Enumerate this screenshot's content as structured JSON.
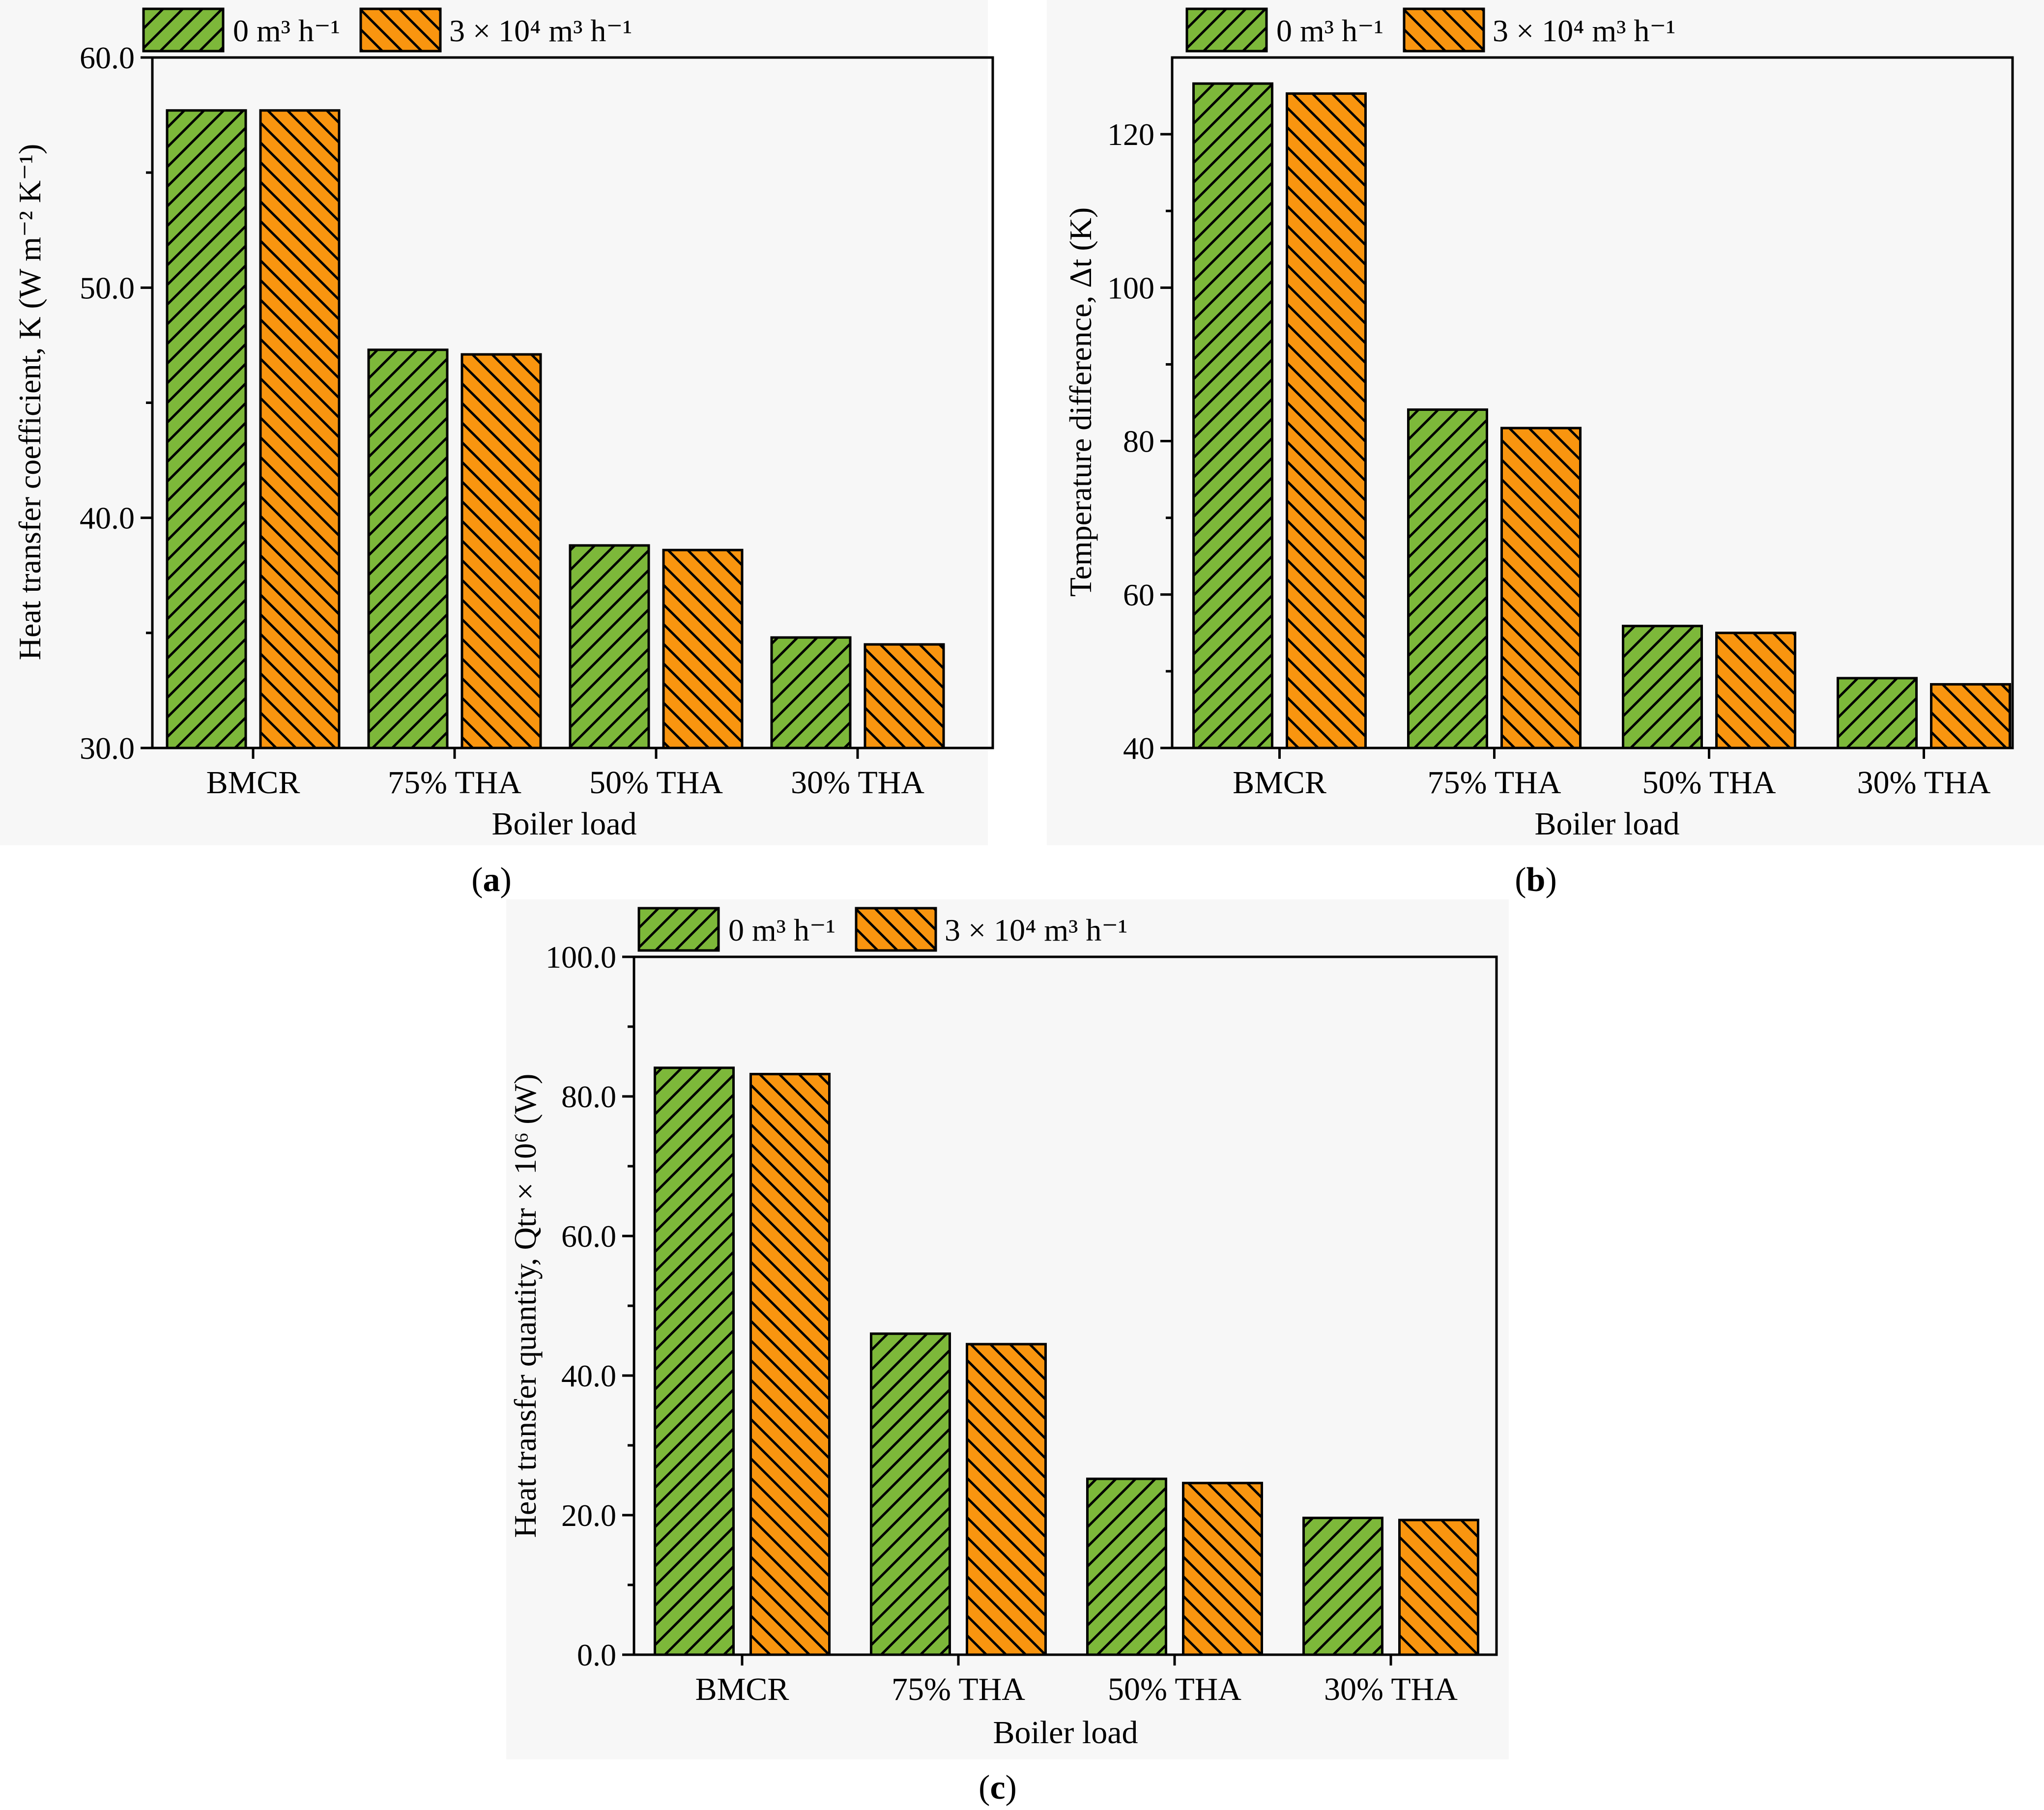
{
  "colors": {
    "green": "#7db83a",
    "orange": "#f9950f",
    "stroke": "#000000",
    "panel_bg": "#f7f7f7"
  },
  "legend": {
    "entries": [
      {
        "name": "0 m³ h⁻¹",
        "color": "#7db83a",
        "hatch": "forward"
      },
      {
        "name": "3 × 10⁴ m³ h⁻¹",
        "color": "#f9950f",
        "hatch": "backward"
      }
    ]
  },
  "chart_data": [
    {
      "id": "a",
      "type": "bar",
      "panel_label": "a",
      "title": "",
      "xlabel": "Boiler load",
      "ylabel": "Heat transfer coefficient, K (W m⁻² K⁻¹)",
      "categories": [
        "BMCR",
        "75% THA",
        "50% THA",
        "30% THA"
      ],
      "series": [
        {
          "name": "0 m³ h⁻¹",
          "values": [
            57.7,
            47.3,
            38.8,
            34.8
          ]
        },
        {
          "name": "3 × 10⁴ m³ h⁻¹",
          "values": [
            57.7,
            47.1,
            38.6,
            34.5
          ]
        }
      ],
      "ylim": [
        30,
        60
      ],
      "yticks": [
        30,
        40,
        50,
        60
      ],
      "yminor": 5,
      "ytick_labels": [
        "30.0",
        "40.0",
        "50.0",
        "60.0"
      ],
      "legend_position": "top"
    },
    {
      "id": "b",
      "type": "bar",
      "panel_label": "b",
      "title": "",
      "xlabel": "Boiler load",
      "ylabel": "Temperature difference, Δt (K)",
      "categories": [
        "BMCR",
        "75% THA",
        "50% THA",
        "30% THA"
      ],
      "series": [
        {
          "name": "0 m³ h⁻¹",
          "values": [
            126.6,
            84.1,
            55.9,
            49.1
          ]
        },
        {
          "name": "3 × 10⁴ m³ h⁻¹",
          "values": [
            125.3,
            81.7,
            55.0,
            48.3
          ]
        }
      ],
      "ylim": [
        40,
        130
      ],
      "yticks": [
        40,
        60,
        80,
        100,
        120
      ],
      "yminor": 10,
      "ytick_labels": [
        "40",
        "60",
        "80",
        "100",
        "120"
      ],
      "legend_position": "top"
    },
    {
      "id": "c",
      "type": "bar",
      "panel_label": "c",
      "title": "",
      "xlabel": "Boiler load",
      "ylabel": "Heat transfer quantity, Qtr × 10⁶ (W)",
      "categories": [
        "BMCR",
        "75% THA",
        "50% THA",
        "30% THA"
      ],
      "series": [
        {
          "name": "0 m³ h⁻¹",
          "values": [
            84.1,
            46.0,
            25.2,
            19.6
          ]
        },
        {
          "name": "3 × 10⁴ m³ h⁻¹",
          "values": [
            83.2,
            44.5,
            24.6,
            19.3
          ]
        }
      ],
      "ylim": [
        0,
        100
      ],
      "yticks": [
        0,
        20,
        40,
        60,
        80,
        100
      ],
      "yminor": 10,
      "ytick_labels": [
        "0.0",
        "20.0",
        "40.0",
        "60.0",
        "80.0",
        "100.0"
      ],
      "legend_position": "top"
    }
  ]
}
